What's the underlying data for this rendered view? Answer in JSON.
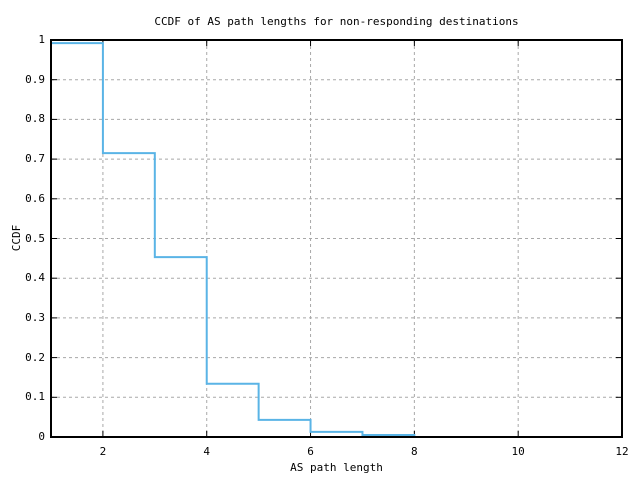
{
  "chart_data": {
    "type": "line",
    "style": "step-post",
    "title": "CCDF of AS path lengths for non-responding destinations",
    "xlabel": "AS path length",
    "ylabel": "CCDF",
    "xlim": [
      1,
      12
    ],
    "ylim": [
      0,
      1
    ],
    "grid": true,
    "legend": "none",
    "line_color": "#5ab4e6",
    "grid_color": "#a8a8a8",
    "axis_color": "#000000",
    "background_color": "#ffffff",
    "x_ticks": [
      {
        "v": 2,
        "label": "2"
      },
      {
        "v": 4,
        "label": "4"
      },
      {
        "v": 6,
        "label": "6"
      },
      {
        "v": 8,
        "label": "8"
      },
      {
        "v": 10,
        "label": "10"
      },
      {
        "v": 12,
        "label": "12"
      }
    ],
    "y_ticks": [
      {
        "v": 0,
        "label": "0"
      },
      {
        "v": 0.1,
        "label": "0.1"
      },
      {
        "v": 0.2,
        "label": "0.2"
      },
      {
        "v": 0.3,
        "label": "0.3"
      },
      {
        "v": 0.4,
        "label": "0.4"
      },
      {
        "v": 0.5,
        "label": "0.5"
      },
      {
        "v": 0.6,
        "label": "0.6"
      },
      {
        "v": 0.7,
        "label": "0.7"
      },
      {
        "v": 0.8,
        "label": "0.8"
      },
      {
        "v": 0.9,
        "label": "0.9"
      },
      {
        "v": 1,
        "label": "1"
      }
    ],
    "series": [
      {
        "x": [
          1,
          2,
          3,
          4,
          5,
          6,
          7,
          8
        ],
        "y": [
          0.992,
          0.715,
          0.453,
          0.134,
          0.043,
          0.013,
          0.005,
          0
        ]
      }
    ]
  }
}
